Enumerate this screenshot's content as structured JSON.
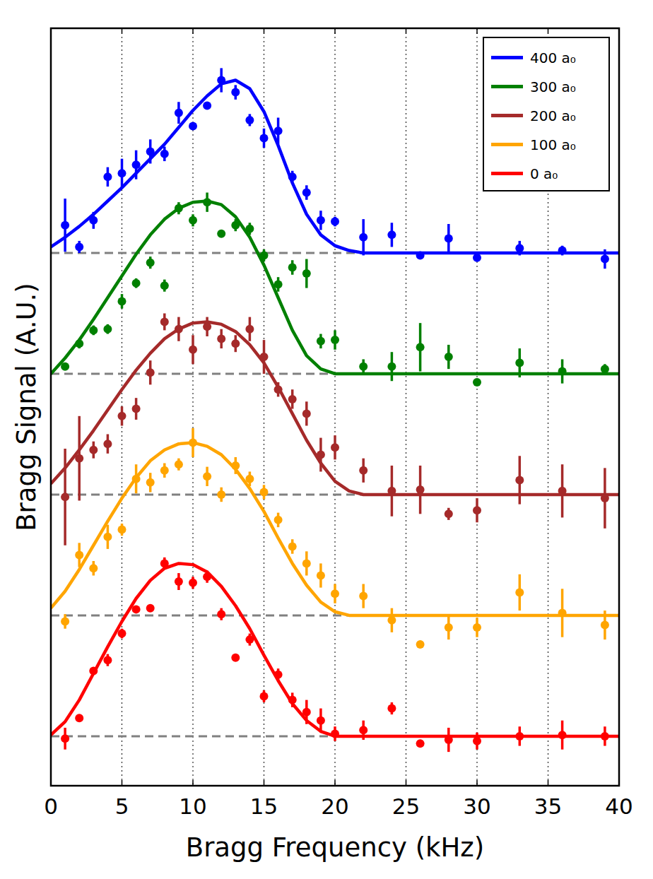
{
  "chart_data": {
    "type": "scatter",
    "xlabel": "Bragg Frequency (kHz)",
    "ylabel": "Bragg Signal (A.U.)",
    "xlim": [
      0,
      40
    ],
    "xticks": [
      0,
      5,
      10,
      15,
      20,
      25,
      30,
      35,
      40
    ],
    "ylim": [
      -0.41,
      5.86
    ],
    "grid": "x",
    "legend": "upper right",
    "tick_labels": "x",
    "marker": "circle",
    "x": [
      1,
      2,
      3,
      4,
      5,
      6,
      7,
      8,
      9,
      10,
      11,
      12,
      13,
      14,
      15,
      16,
      17,
      18,
      19,
      20,
      22,
      24,
      26,
      28,
      30,
      33,
      36,
      39
    ],
    "fit_x": [
      0,
      1,
      2,
      3,
      4,
      5,
      6,
      7,
      8,
      9,
      10,
      11,
      12,
      13,
      14,
      15,
      16,
      17,
      18,
      19,
      20,
      21,
      22,
      40
    ],
    "series": [
      {
        "name": "400 a₀",
        "color": "#0000ff",
        "offset": 4,
        "values": [
          0.23,
          0.05,
          0.27,
          0.63,
          0.66,
          0.73,
          0.84,
          0.82,
          1.16,
          1.05,
          1.22,
          1.43,
          1.33,
          1.1,
          0.95,
          1.01,
          0.63,
          0.5,
          0.27,
          0.26,
          0.13,
          0.15,
          -0.02,
          0.12,
          -0.04,
          0.04,
          0.02,
          -0.05
        ],
        "errors": [
          0.22,
          0.05,
          0.07,
          0.08,
          0.12,
          0.12,
          0.1,
          0.06,
          0.09,
          0.03,
          0.03,
          0.1,
          0.06,
          0.05,
          0.08,
          0.11,
          0.05,
          0.06,
          0.08,
          0.04,
          0.15,
          0.1,
          0.03,
          0.12,
          0.02,
          0.06,
          0.04,
          0.08
        ],
        "fit_values": [
          0.05,
          0.13,
          0.22,
          0.32,
          0.43,
          0.54,
          0.66,
          0.78,
          0.9,
          1.04,
          1.18,
          1.3,
          1.4,
          1.43,
          1.36,
          1.17,
          0.89,
          0.58,
          0.32,
          0.15,
          0.06,
          0.02,
          0,
          0
        ]
      },
      {
        "name": "300 a₀",
        "color": "#008000",
        "offset": 3,
        "values": [
          0.06,
          0.25,
          0.36,
          0.37,
          0.6,
          0.75,
          0.92,
          0.73,
          1.37,
          1.27,
          1.42,
          1.16,
          1.23,
          1.2,
          0.98,
          0.74,
          0.88,
          0.83,
          0.27,
          0.28,
          0.06,
          0.06,
          0.22,
          0.14,
          -0.07,
          0.09,
          0.02,
          0.04
        ],
        "errors": [
          0.02,
          0.04,
          0.04,
          0.04,
          0.06,
          0.04,
          0.05,
          0.05,
          0.05,
          0.05,
          0.08,
          0.03,
          0.05,
          0.05,
          0.05,
          0.06,
          0.06,
          0.12,
          0.06,
          0.08,
          0.06,
          0.12,
          0.2,
          0.1,
          0.03,
          0.12,
          0.1,
          0.04
        ],
        "fit_values": [
          0,
          0.13,
          0.28,
          0.45,
          0.63,
          0.81,
          0.99,
          1.15,
          1.28,
          1.37,
          1.42,
          1.43,
          1.4,
          1.3,
          1.13,
          0.9,
          0.63,
          0.36,
          0.15,
          0.04,
          0,
          0,
          0,
          0
        ]
      },
      {
        "name": "200 a₀",
        "color": "#a52a2a",
        "offset": 2,
        "values": [
          -0.02,
          0.3,
          0.37,
          0.42,
          0.65,
          0.71,
          1.01,
          1.43,
          1.37,
          1.2,
          1.39,
          1.29,
          1.25,
          1.37,
          1.14,
          0.87,
          0.79,
          0.67,
          0.33,
          0.39,
          0.2,
          0.03,
          0.04,
          -0.16,
          -0.13,
          0.12,
          0.03,
          -0.03
        ],
        "errors": [
          0.4,
          0.35,
          0.07,
          0.08,
          0.08,
          0.09,
          0.1,
          0.07,
          0.1,
          0.12,
          0.08,
          0.08,
          0.07,
          0.1,
          0.14,
          0.06,
          0.08,
          0.1,
          0.14,
          0.1,
          0.1,
          0.21,
          0.2,
          0.05,
          0.1,
          0.2,
          0.22,
          0.25
        ],
        "fit_values": [
          0.09,
          0.22,
          0.37,
          0.53,
          0.7,
          0.87,
          1.03,
          1.17,
          1.29,
          1.37,
          1.42,
          1.43,
          1.41,
          1.35,
          1.24,
          1.09,
          0.89,
          0.67,
          0.45,
          0.26,
          0.11,
          0.03,
          0,
          0
        ]
      },
      {
        "name": "100 a₀",
        "color": "#ffa500",
        "offset": 1,
        "values": [
          -0.05,
          0.5,
          0.39,
          0.65,
          0.71,
          1.13,
          1.1,
          1.2,
          1.25,
          1.43,
          1.15,
          1.0,
          1.24,
          1.13,
          1.02,
          0.79,
          0.57,
          0.43,
          0.33,
          0.18,
          0.16,
          -0.04,
          -0.24,
          -0.1,
          -0.1,
          0.19,
          0.02,
          -0.08
        ],
        "errors": [
          0.06,
          0.1,
          0.06,
          0.1,
          0.05,
          0.12,
          0.08,
          0.06,
          0.05,
          0.12,
          0.08,
          0.06,
          0.07,
          0.06,
          0.06,
          0.06,
          0.06,
          0.1,
          0.1,
          0.08,
          0.1,
          0.1,
          0.03,
          0.1,
          0.08,
          0.15,
          0.2,
          0.12
        ],
        "fit_values": [
          0.06,
          0.2,
          0.38,
          0.58,
          0.78,
          0.97,
          1.14,
          1.28,
          1.37,
          1.42,
          1.43,
          1.4,
          1.33,
          1.21,
          1.05,
          0.86,
          0.64,
          0.43,
          0.25,
          0.11,
          0.03,
          0,
          0,
          0
        ]
      },
      {
        "name": "0 a₀",
        "color": "#ff0000",
        "offset": 0,
        "values": [
          -0.02,
          0.15,
          0.54,
          0.63,
          0.85,
          1.05,
          1.06,
          1.43,
          1.28,
          1.27,
          1.32,
          1.01,
          0.65,
          0.8,
          0.33,
          0.51,
          0.3,
          0.2,
          0.13,
          0.02,
          0.05,
          0.23,
          -0.06,
          -0.03,
          -0.04,
          0,
          0.01,
          0
        ],
        "errors": [
          0.09,
          0.02,
          0.03,
          0.05,
          0.04,
          0.03,
          0.02,
          0.05,
          0.07,
          0.05,
          0.05,
          0.05,
          0.03,
          0.05,
          0.05,
          0.05,
          0.06,
          0.1,
          0.1,
          0.06,
          0.08,
          0.05,
          0.03,
          0.1,
          0.07,
          0.08,
          0.12,
          0.08
        ],
        "fit_values": [
          0.01,
          0.12,
          0.3,
          0.52,
          0.74,
          0.95,
          1.14,
          1.29,
          1.39,
          1.43,
          1.42,
          1.36,
          1.24,
          1.08,
          0.89,
          0.67,
          0.46,
          0.27,
          0.13,
          0.04,
          0,
          0,
          0,
          0
        ]
      }
    ]
  }
}
